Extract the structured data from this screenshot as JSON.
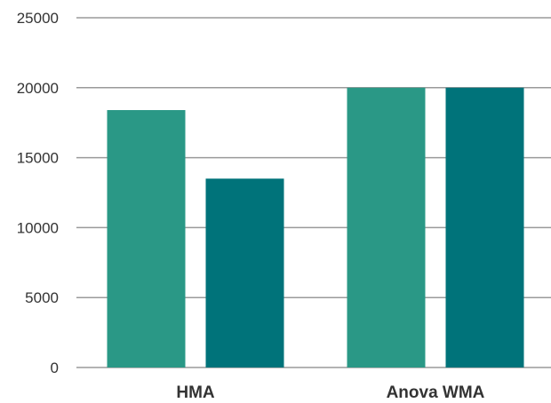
{
  "chart_data": {
    "type": "bar",
    "title": "",
    "xlabel": "",
    "ylabel": "",
    "categories": [
      "HMA",
      "Anova WMA"
    ],
    "series": [
      {
        "values": [
          18400,
          20000
        ],
        "color": "#2a9886"
      },
      {
        "values": [
          13500,
          20000
        ],
        "color": "#00737a"
      }
    ],
    "ylim": [
      0,
      25000
    ],
    "yticks": [
      0,
      5000,
      10000,
      15000,
      20000,
      25000
    ],
    "grid": true,
    "legend": "none",
    "gridline_color": "#9a9a9a"
  }
}
